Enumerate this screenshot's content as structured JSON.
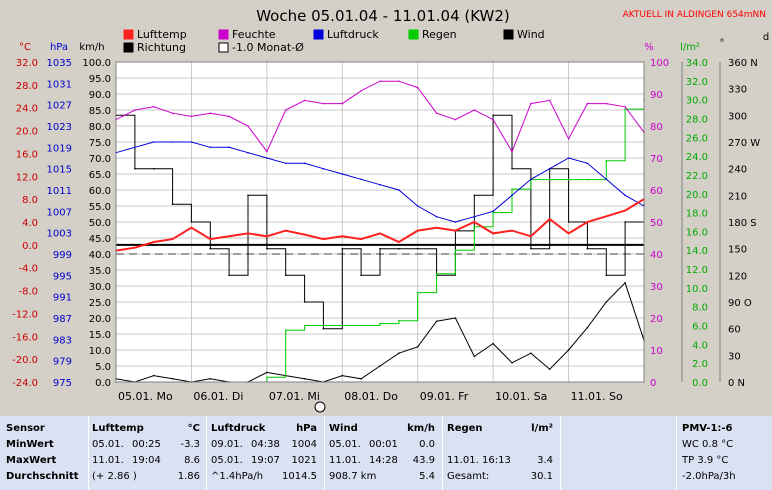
{
  "header": {
    "title": "Woche 05.01.04 - 11.01.04 (KW2)",
    "location": "AKTUELL IN ALDINGEN 654mNN"
  },
  "legend": [
    {
      "label": "Lufttemp",
      "color": "#ff2020"
    },
    {
      "label": "Feuchte",
      "color": "#cc00cc"
    },
    {
      "label": "Luftdruck",
      "color": "#0000dd"
    },
    {
      "label": "Regen",
      "color": "#00cc00"
    },
    {
      "label": "Wind",
      "color": "#000000"
    },
    {
      "label": "Richtung",
      "color": "#000000"
    },
    {
      "label": "-1.0 Monat-Ø",
      "color": "#ffffff"
    }
  ],
  "axes": {
    "units": {
      "temp": "°C",
      "pressure": "hPa",
      "wind": "km/h",
      "humidity": "%",
      "rain": "l/m²",
      "direction": "°",
      "direction_dir": "d"
    },
    "temp_ticks": [
      "32.0",
      "28.0",
      "24.0",
      "20.0",
      "16.0",
      "12.0",
      "8.0",
      "4.0",
      "0.0",
      "-4.0",
      "-8.0",
      "-12.0",
      "-16.0",
      "-20.0",
      "-24.0"
    ],
    "pressure_ticks": [
      "1035",
      "1031",
      "1027",
      "1023",
      "1019",
      "1015",
      "1011",
      "1007",
      "1003",
      "999",
      "995",
      "991",
      "987",
      "983",
      "979",
      "975"
    ],
    "wind_ticks": [
      "100.0",
      "95.0",
      "90.0",
      "85.0",
      "80.0",
      "75.0",
      "70.0",
      "65.0",
      "60.0",
      "55.0",
      "50.0",
      "45.0",
      "40.0",
      "35.0",
      "30.0",
      "25.0",
      "20.0",
      "15.0",
      "10.0",
      "5.0",
      "0.0"
    ],
    "humidity_ticks": [
      "100",
      "90",
      "80",
      "70",
      "60",
      "50",
      "40",
      "30",
      "20",
      "10",
      "0"
    ],
    "rain_ticks": [
      "34.0",
      "32.0",
      "30.0",
      "28.0",
      "26.0",
      "24.0",
      "22.0",
      "20.0",
      "18.0",
      "16.0",
      "14.0",
      "12.0",
      "10.0",
      "8.0",
      "6.0",
      "4.0",
      "2.0",
      "0.0"
    ],
    "direction_ticks": [
      "360 N",
      "330",
      "300",
      "270 W",
      "240",
      "210",
      "180 S",
      "150",
      "120",
      "90 O",
      "60",
      "30",
      "0 N"
    ],
    "day_labels": [
      "05.01. Mo",
      "06.01. Di",
      "07.01. Mi",
      "08.01. Do",
      "09.01. Fr",
      "10.01. Sa",
      "11.01. So"
    ]
  },
  "chart_data": {
    "type": "line",
    "title": "Woche 05.01.04 - 11.01.04 (KW2)",
    "x_unit": "hours since 05.01. 00:00",
    "x_range": [
      0,
      168
    ],
    "series": [
      {
        "name": "Lufttemp",
        "unit": "°C",
        "axis": "temp",
        "ylim": [
          -24,
          32
        ],
        "color": "#ff2020",
        "x": [
          0,
          6,
          12,
          18,
          24,
          30,
          36,
          42,
          48,
          54,
          60,
          66,
          72,
          78,
          84,
          90,
          96,
          102,
          108,
          114,
          120,
          126,
          132,
          138,
          144,
          150,
          156,
          162,
          168
        ],
        "y": [
          -1.0,
          -0.5,
          0.5,
          1.0,
          3.0,
          1.0,
          1.5,
          2.0,
          1.5,
          2.5,
          1.8,
          1.0,
          1.5,
          1.0,
          2.0,
          0.5,
          2.5,
          3.0,
          2.5,
          4.0,
          2.0,
          2.5,
          1.5,
          4.5,
          2.0,
          4.0,
          5.0,
          6.0,
          8.0
        ]
      },
      {
        "name": "Feuchte",
        "unit": "%",
        "axis": "humidity",
        "ylim": [
          0,
          100
        ],
        "color": "#cc00cc",
        "x": [
          0,
          6,
          12,
          18,
          24,
          30,
          36,
          42,
          48,
          54,
          60,
          66,
          72,
          78,
          84,
          90,
          96,
          102,
          108,
          114,
          120,
          126,
          132,
          138,
          144,
          150,
          156,
          162,
          168
        ],
        "y": [
          82,
          85,
          86,
          84,
          83,
          84,
          83,
          80,
          72,
          85,
          88,
          87,
          87,
          91,
          94,
          94,
          92,
          84,
          82,
          85,
          82,
          72,
          87,
          88,
          76,
          87,
          87,
          86,
          78
        ]
      },
      {
        "name": "Luftdruck",
        "unit": "hPa",
        "axis": "pressure",
        "ylim": [
          975,
          1035
        ],
        "color": "#0000dd",
        "x": [
          0,
          6,
          12,
          18,
          24,
          30,
          36,
          42,
          48,
          54,
          60,
          66,
          72,
          78,
          84,
          90,
          96,
          102,
          108,
          114,
          120,
          126,
          132,
          138,
          144,
          150,
          156,
          162,
          168
        ],
        "y": [
          1018,
          1019,
          1020,
          1020,
          1020,
          1019,
          1019,
          1018,
          1017,
          1016,
          1016,
          1015,
          1014,
          1013,
          1012,
          1011,
          1008,
          1006,
          1005,
          1006,
          1007,
          1010,
          1013,
          1015,
          1017,
          1016,
          1013,
          1010,
          1008
        ]
      },
      {
        "name": "Regen",
        "unit": "l/m²",
        "axis": "rain",
        "ylim": [
          0,
          34
        ],
        "color": "#00cc00",
        "x": [
          0,
          24,
          48,
          54,
          60,
          66,
          72,
          84,
          90,
          96,
          102,
          108,
          114,
          120,
          126,
          132,
          138,
          144,
          150,
          156,
          162,
          168
        ],
        "y": [
          0,
          0,
          0.5,
          5.5,
          6.0,
          6.0,
          6.0,
          6.2,
          6.5,
          9.5,
          11.5,
          14.0,
          16.5,
          18.0,
          20.5,
          21.5,
          21.5,
          21.5,
          21.5,
          23.5,
          29.0,
          30.0
        ]
      },
      {
        "name": "Wind",
        "unit": "km/h",
        "axis": "wind",
        "ylim": [
          0,
          100
        ],
        "color": "#000000",
        "x": [
          0,
          6,
          12,
          18,
          24,
          30,
          36,
          42,
          48,
          54,
          60,
          66,
          72,
          78,
          84,
          90,
          96,
          102,
          108,
          114,
          120,
          126,
          132,
          138,
          144,
          150,
          156,
          162,
          168
        ],
        "y": [
          1,
          0,
          2,
          1,
          0,
          1,
          0,
          0,
          3,
          2,
          1,
          0,
          2,
          1,
          5,
          9,
          11,
          19,
          20,
          8,
          12,
          6,
          9,
          4,
          10,
          17,
          25,
          31,
          13
        ]
      },
      {
        "name": "Richtung",
        "unit": "°",
        "axis": "direction",
        "ylim": [
          0,
          360
        ],
        "color": "#000000",
        "x": [
          0,
          6,
          12,
          18,
          24,
          30,
          36,
          42,
          48,
          54,
          60,
          66,
          72,
          78,
          84,
          90,
          96,
          102,
          108,
          114,
          120,
          126,
          132,
          138,
          144,
          150,
          156,
          162,
          168
        ],
        "y": [
          300,
          240,
          240,
          200,
          180,
          150,
          120,
          210,
          150,
          120,
          90,
          60,
          150,
          120,
          150,
          150,
          150,
          120,
          170,
          210,
          300,
          240,
          150,
          240,
          180,
          150,
          120,
          180,
          200
        ]
      }
    ],
    "reference": {
      "name": "-1.0 Monat-Ø",
      "axis": "temp",
      "value": -1.0
    },
    "reference_lines": [
      {
        "axis": "temp",
        "value": 0.0,
        "style": "solid"
      },
      {
        "axis": "pressure",
        "value": 999,
        "style": "dashed"
      }
    ]
  },
  "stats": {
    "sensor": {
      "title": "Sensor",
      "rows": [
        "MinWert",
        "MaxWert",
        "Durchschnitt"
      ]
    },
    "temp": {
      "title": "Lufttemp",
      "unit": "°C",
      "rows": [
        [
          "05.01.",
          "00:25",
          "-3.3"
        ],
        [
          "11.01.",
          "19:04",
          "8.6"
        ],
        [
          "(+ 2.86 )",
          "",
          "1.86"
        ]
      ]
    },
    "pressure": {
      "title": "Luftdruck",
      "unit": "hPa",
      "rows": [
        [
          "09.01.",
          "04:38",
          "1004"
        ],
        [
          "05.01.",
          "19:07",
          "1021"
        ],
        [
          "^1.4hPa/h",
          "",
          "1014.5"
        ]
      ]
    },
    "wind": {
      "title": "Wind",
      "unit": "km/h",
      "rows": [
        [
          "05.01.",
          "00:01",
          "0.0"
        ],
        [
          "11.01.",
          "14:28",
          "43.9"
        ],
        [
          "908.7 km",
          "",
          "5.4"
        ]
      ]
    },
    "rain": {
      "title": "Regen",
      "unit": "l/m²",
      "rows": [
        [
          "",
          ""
        ],
        [
          "11.01.  16:13",
          "3.4"
        ],
        [
          "Gesamt:",
          "30.1"
        ]
      ]
    },
    "pmv": {
      "title": "PMV-1:-6",
      "rows": [
        "WC 0.8 °C",
        "TP 3.9 °C",
        "-2.0hPa/3h"
      ]
    }
  }
}
